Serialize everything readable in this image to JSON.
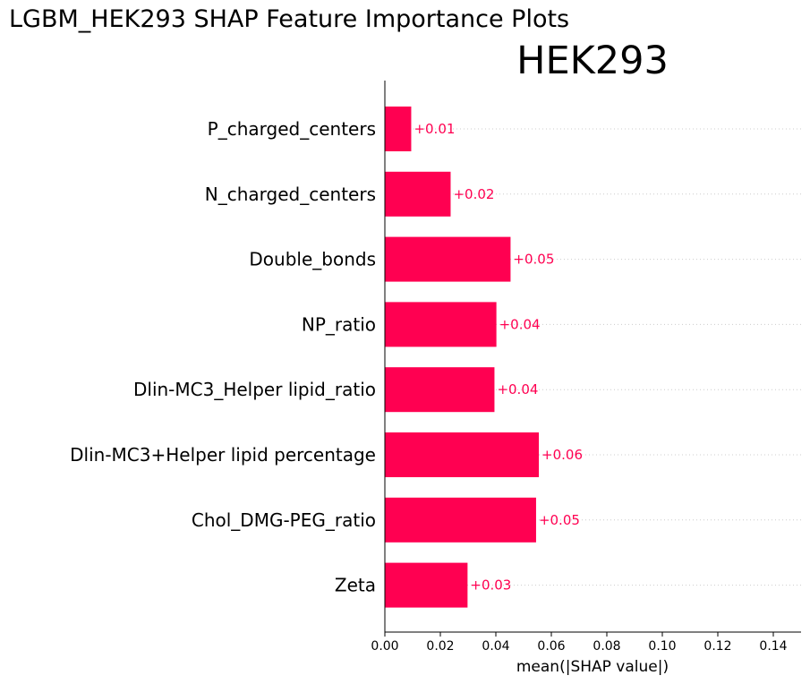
{
  "figure": {
    "suptitle": "LGBM_HEK293 SHAP Feature Importance Plots"
  },
  "chart_data": {
    "type": "bar",
    "orientation": "horizontal",
    "title": "HEK293",
    "xlabel": "mean(|SHAP value|)",
    "ylabel": "",
    "xlim": [
      0.0,
      0.15
    ],
    "xticks": [
      "0.00",
      "0.02",
      "0.04",
      "0.06",
      "0.08",
      "0.10",
      "0.12",
      "0.14"
    ],
    "categories": [
      "P_charged_centers",
      "N_charged_centers",
      "Double_bonds",
      "NP_ratio",
      "Dlin-MC3_Helper lipid_ratio",
      "Dlin-MC3+Helper lipid percentage",
      "Chol_DMG-PEG_ratio",
      "Zeta"
    ],
    "values": [
      0.0095,
      0.0237,
      0.0453,
      0.0402,
      0.0395,
      0.0555,
      0.0545,
      0.0298
    ],
    "value_labels": [
      "+0.01",
      "+0.02",
      "+0.05",
      "+0.04",
      "+0.04",
      "+0.06",
      "+0.05",
      "+0.03"
    ],
    "bar_color": "#ff0051",
    "label_color": "#ff0051",
    "grid": "dotted horizontal guide lines per row",
    "legend": "none"
  }
}
